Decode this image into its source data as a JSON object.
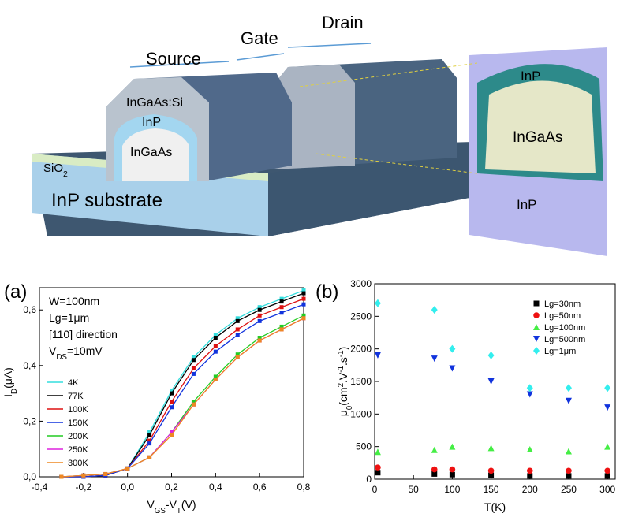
{
  "diagram": {
    "labels": {
      "source": "Source",
      "gate": "Gate",
      "drain": "Drain",
      "ingaas_si": "InGaAs:Si",
      "inp_shell": "InP",
      "ingaas_core": "InGaAs",
      "sio2": [
        {
          "t": "SiO"
        },
        {
          "t": "2",
          "sub": true
        }
      ],
      "substrate": "InP substrate",
      "inset_top": "InP",
      "inset_mid": "InGaAs",
      "inset_bottom": "InP"
    }
  },
  "chart_data": [
    {
      "type": "line",
      "panel": "(a)",
      "x": [
        -0.3,
        -0.2,
        -0.1,
        0,
        0.1,
        0.2,
        0.3,
        0.4,
        0.5,
        0.6,
        0.7,
        0.8
      ],
      "xlabel": [
        {
          "t": "V"
        },
        {
          "t": "GS",
          "sub": true
        },
        {
          "t": "-V"
        },
        {
          "t": "T",
          "sub": true
        },
        {
          "t": "(V)"
        }
      ],
      "ylabel": [
        {
          "t": "I"
        },
        {
          "t": "D",
          "sub": true
        },
        {
          "t": "(μA)"
        }
      ],
      "annotations": [
        [
          {
            "t": "W=100nm"
          }
        ],
        [
          {
            "t": "Lg=1μm"
          }
        ],
        [
          {
            "t": "[110] direction"
          }
        ],
        [
          {
            "t": "V"
          },
          {
            "t": "DS",
            "sub": true
          },
          {
            "t": "=10mV"
          }
        ]
      ],
      "xlim": [
        -0.4,
        0.8
      ],
      "ylim": [
        0,
        0.68
      ],
      "xticks": [
        {
          "value": -0.4,
          "label": "-0,4"
        },
        {
          "value": -0.2,
          "label": "-0,2"
        },
        {
          "value": 0,
          "label": "0,0"
        },
        {
          "value": 0.2,
          "label": "0,2"
        },
        {
          "value": 0.4,
          "label": "0,4"
        },
        {
          "value": 0.6,
          "label": "0,6"
        },
        {
          "value": 0.8,
          "label": "0,8"
        }
      ],
      "yticks": [
        {
          "value": 0,
          "label": "0,0"
        },
        {
          "value": 0.2,
          "label": "0,2"
        },
        {
          "value": 0.4,
          "label": "0,4"
        },
        {
          "value": 0.6,
          "label": "0,6"
        }
      ],
      "series": [
        {
          "name": "4K",
          "color": "#33dddd",
          "values": [
            0,
            0,
            0.005,
            0.03,
            0.16,
            0.31,
            0.43,
            0.51,
            0.57,
            0.61,
            0.64,
            0.67
          ]
        },
        {
          "name": "77K",
          "color": "#000000",
          "values": [
            0,
            0,
            0.005,
            0.03,
            0.15,
            0.3,
            0.42,
            0.5,
            0.56,
            0.6,
            0.63,
            0.66
          ]
        },
        {
          "name": "100K",
          "color": "#dd1111",
          "values": [
            0,
            0,
            0.005,
            0.03,
            0.13,
            0.27,
            0.39,
            0.47,
            0.53,
            0.58,
            0.61,
            0.64
          ]
        },
        {
          "name": "150K",
          "color": "#1133dd",
          "values": [
            0,
            0,
            0.005,
            0.03,
            0.12,
            0.25,
            0.37,
            0.45,
            0.51,
            0.56,
            0.59,
            0.62
          ]
        },
        {
          "name": "200K",
          "color": "#22cc22",
          "values": [
            0,
            0.005,
            0.01,
            0.03,
            0.07,
            0.16,
            0.27,
            0.36,
            0.44,
            0.5,
            0.54,
            0.58
          ]
        },
        {
          "name": "250K",
          "color": "#dd22dd",
          "values": [
            0,
            0.005,
            0.01,
            0.03,
            0.07,
            0.16,
            0.26,
            0.35,
            0.43,
            0.49,
            0.53,
            0.57
          ]
        },
        {
          "name": "300K",
          "color": "#ee8822",
          "values": [
            0,
            0.005,
            0.01,
            0.03,
            0.07,
            0.15,
            0.26,
            0.35,
            0.43,
            0.49,
            0.53,
            0.57
          ]
        }
      ]
    },
    {
      "type": "scatter",
      "panel": "(b)",
      "x": [
        4,
        77,
        100,
        150,
        200,
        250,
        300
      ],
      "xlabel": [
        {
          "t": "T(K)"
        }
      ],
      "ylabel": [
        {
          "t": "μ"
        },
        {
          "t": "0",
          "sub": true
        },
        {
          "t": "(cm"
        },
        {
          "t": "2",
          "sup": true
        },
        {
          "t": ".V"
        },
        {
          "t": "-1",
          "sup": true
        },
        {
          "t": ".s"
        },
        {
          "t": "-1",
          "sup": true
        },
        {
          "t": ")"
        }
      ],
      "xlim": [
        0,
        310
      ],
      "ylim": [
        0,
        3000
      ],
      "xticks": [
        0,
        50,
        100,
        150,
        200,
        250,
        300
      ],
      "yticks": [
        0,
        500,
        1000,
        1500,
        2000,
        2500,
        3000
      ],
      "series": [
        {
          "name": "Lg=30nm",
          "color": "#000000",
          "marker": "square",
          "values": [
            100,
            80,
            70,
            60,
            50,
            50,
            50
          ]
        },
        {
          "name": "Lg=50nm",
          "color": "#ee1111",
          "marker": "circle",
          "values": [
            180,
            150,
            150,
            130,
            130,
            130,
            130
          ]
        },
        {
          "name": "Lg=100nm",
          "color": "#44ee44",
          "marker": "triangle",
          "values": [
            420,
            450,
            500,
            480,
            460,
            430,
            500
          ]
        },
        {
          "name": "Lg=500nm",
          "color": "#1133dd",
          "marker": "triangle-down",
          "values": [
            1900,
            1850,
            1700,
            1500,
            1300,
            1200,
            1100
          ]
        },
        {
          "name": "Lg=1μm",
          "color": "#33eeee",
          "marker": "diamond",
          "values": [
            2700,
            2600,
            2000,
            1900,
            1400,
            1400,
            1400
          ]
        }
      ]
    }
  ]
}
